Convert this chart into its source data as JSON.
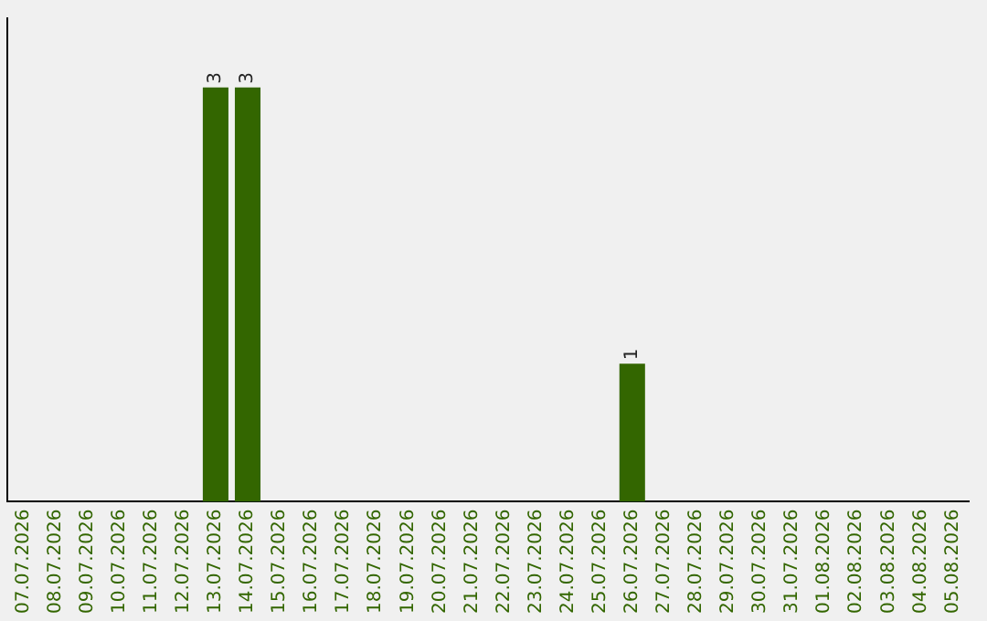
{
  "chart_data": {
    "type": "bar",
    "categories": [
      "07.07.2026",
      "08.07.2026",
      "09.07.2026",
      "10.07.2026",
      "11.07.2026",
      "12.07.2026",
      "13.07.2026",
      "14.07.2026",
      "15.07.2026",
      "16.07.2026",
      "17.07.2026",
      "18.07.2026",
      "19.07.2026",
      "20.07.2026",
      "21.07.2026",
      "22.07.2026",
      "23.07.2026",
      "24.07.2026",
      "25.07.2026",
      "26.07.2026",
      "27.07.2026",
      "28.07.2026",
      "29.07.2026",
      "30.07.2026",
      "31.07.2026",
      "01.08.2026",
      "02.08.2026",
      "03.08.2026",
      "04.08.2026",
      "05.08.2026"
    ],
    "values": [
      0,
      0,
      0,
      0,
      0,
      0,
      3,
      3,
      0,
      0,
      0,
      0,
      0,
      0,
      0,
      0,
      0,
      0,
      0,
      1,
      0,
      0,
      0,
      0,
      0,
      0,
      0,
      0,
      0,
      0
    ],
    "value_labels": [
      null,
      null,
      null,
      null,
      null,
      null,
      "3",
      "3",
      null,
      null,
      null,
      null,
      null,
      null,
      null,
      null,
      null,
      null,
      null,
      "1",
      null,
      null,
      null,
      null,
      null,
      null,
      null,
      null,
      null,
      null
    ],
    "color": "#336600",
    "grid": false,
    "legend": false
  }
}
